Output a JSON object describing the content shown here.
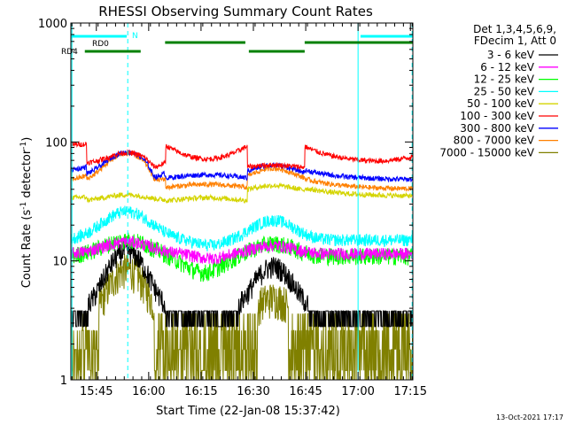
{
  "chart_data": {
    "type": "line",
    "title": "RHESSI Observing Summary Count Rates",
    "xlabel": "Start Time (22-Jan-08 15:37:42)",
    "ylabel_main": "Count Rate (s",
    "ylabel_sup1": "-1",
    "ylabel_mid": " detector",
    "ylabel_sup2": "-1",
    "ylabel_end": ")",
    "y_scale": "log",
    "ylim": [
      1,
      1000
    ],
    "xlim_minutes": [
      0,
      98
    ],
    "x_ticks": [
      {
        "label": "15:45",
        "minute": 7.3
      },
      {
        "label": "16:00",
        "minute": 22.3
      },
      {
        "label": "16:15",
        "minute": 37.3
      },
      {
        "label": "16:30",
        "minute": 52.3
      },
      {
        "label": "16:45",
        "minute": 67.3
      },
      {
        "label": "17:00",
        "minute": 82.3
      },
      {
        "label": "17:15",
        "minute": 97.3
      }
    ],
    "y_ticks": [
      {
        "label": "1",
        "value": 1
      },
      {
        "label": "10",
        "value": 10
      },
      {
        "label": "100",
        "value": 100
      },
      {
        "label": "1000",
        "value": 1000
      }
    ],
    "legend_header1": "Det 1,3,4,5,6,9,",
    "legend_header2": "FDecim 1, Att 0",
    "series": [
      {
        "name": "3 - 6 keV",
        "color": "#000000",
        "key": "s3_6"
      },
      {
        "name": "6 - 12 keV",
        "color": "#ff00ff",
        "key": "s6_12"
      },
      {
        "name": "12 - 25 keV",
        "color": "#00ff00",
        "key": "s12_25"
      },
      {
        "name": "25 - 50 keV",
        "color": "#00ffff",
        "key": "s25_50"
      },
      {
        "name": "50 - 100 keV",
        "color": "#d4d400",
        "key": "s50_100"
      },
      {
        "name": "100 - 300 keV",
        "color": "#ff0000",
        "key": "s100_300"
      },
      {
        "name": "300 - 800 keV",
        "color": "#0000ff",
        "key": "s300_800"
      },
      {
        "name": "800 - 7000 keV",
        "color": "#ff8000",
        "key": "s800_7000"
      },
      {
        "name": "7000 - 15000 keV",
        "color": "#808000",
        "key": "s7000_15000"
      }
    ],
    "flag_labels": {
      "rd0": "RD0",
      "rd4": "RD4",
      "n": "N"
    },
    "flag_bars": {
      "n_cyan": [
        [
          0,
          16
        ],
        [
          83,
          98
        ]
      ],
      "rd0_green": [
        [
          27,
          50
        ],
        [
          67,
          98
        ]
      ],
      "rd4_green": [
        [
          4,
          20
        ],
        [
          51,
          67
        ]
      ]
    },
    "vertical_lines_solid_minutes": [
      0.3,
      82.3
    ],
    "vertical_lines_dashed_minutes": [
      16.3,
      97.8
    ],
    "timestamp": "13-Oct-2021 17:17"
  }
}
